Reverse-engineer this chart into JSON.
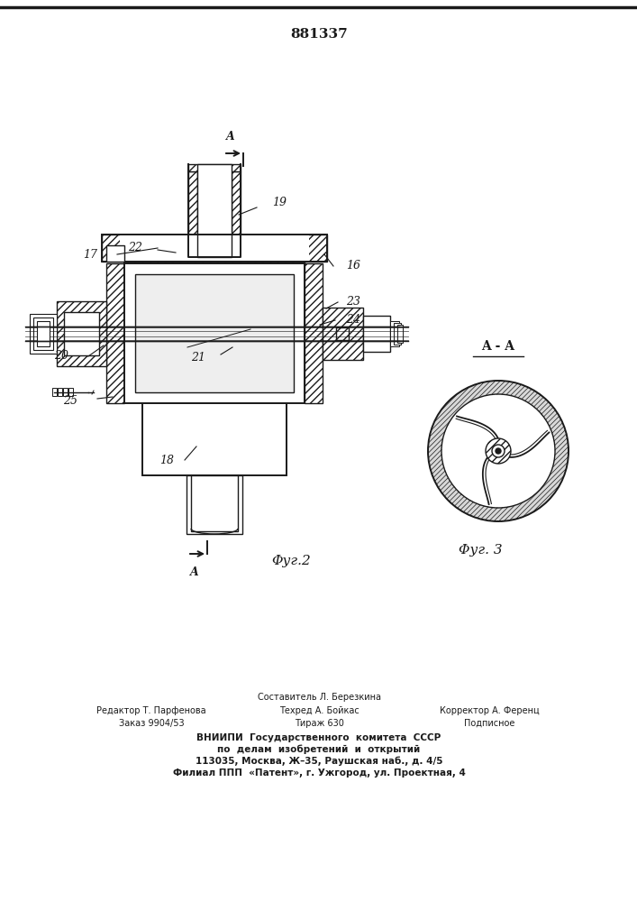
{
  "patent_number": "881337",
  "background_color": "#ffffff",
  "line_color": "#1a1a1a",
  "fig2_label": "Φуг.2",
  "fig3_label": "Φуг. 3",
  "section_label": "A - A",
  "footer_line1": "Составитель Л. Березкина",
  "footer_line2a": "Редактор Т. Парфенова",
  "footer_line2b": "Техред А. Бойкас",
  "footer_line2c": "Корректор А. Ференц",
  "footer_line3a": "Заказ 9904/53",
  "footer_line3b": "Тираж 630",
  "footer_line3c": "Подписное",
  "footer_line4": "ВНИИПИ  Государственного  комитета  СССР",
  "footer_line5": "по  делам  изобретений  и  открытий",
  "footer_line6": "113035, Москва, Ж–35, Раушская наб., д. 4/5",
  "footer_line7": "Филиал ППП  «Патент», г. Ужгород, ул. Проектная, 4"
}
